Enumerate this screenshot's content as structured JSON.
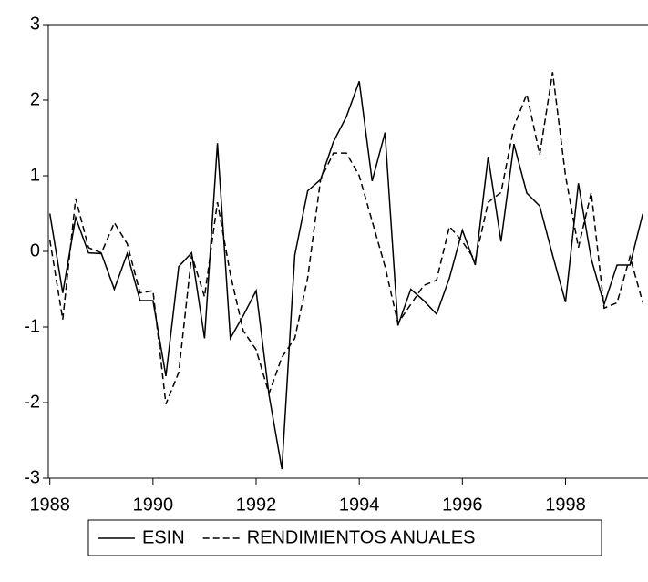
{
  "chart_data": {
    "type": "line",
    "x": [
      1988,
      1988.25,
      1988.5,
      1988.75,
      1989,
      1989.25,
      1989.5,
      1989.75,
      1990,
      1990.25,
      1990.5,
      1990.75,
      1991,
      1991.25,
      1991.5,
      1991.75,
      1992,
      1992.25,
      1992.5,
      1992.75,
      1993,
      1993.25,
      1993.5,
      1993.75,
      1994,
      1994.25,
      1994.5,
      1994.75,
      1995,
      1995.25,
      1995.5,
      1995.75,
      1996,
      1996.25,
      1996.5,
      1996.75,
      1997,
      1997.25,
      1997.5,
      1997.75,
      1998,
      1998.25,
      1998.5,
      1998.75,
      1999,
      1999.25,
      1999.5
    ],
    "series": [
      {
        "name": "ESIN",
        "color": "#000000",
        "dash": "solid",
        "values": [
          0.5,
          -0.55,
          0.45,
          -0.02,
          -0.03,
          -0.5,
          -0.03,
          -0.65,
          -0.65,
          -1.65,
          -0.2,
          -0.02,
          -1.15,
          1.43,
          -1.15,
          -0.85,
          -0.52,
          -1.9,
          -2.88,
          -0.05,
          0.8,
          0.95,
          1.45,
          1.78,
          2.25,
          0.93,
          1.57,
          -0.98,
          -0.5,
          -0.65,
          -0.83,
          -0.35,
          0.28,
          -0.18,
          1.25,
          0.13,
          1.42,
          0.77,
          0.6,
          -0.05,
          -0.67,
          0.9,
          -0.1,
          -0.7,
          -0.18,
          -0.18,
          0.5
        ]
      },
      {
        "name": "RENDIMIENTOS ANUALES",
        "color": "#000000",
        "dash": "dashed",
        "values": [
          0.15,
          -0.9,
          0.7,
          0.05,
          -0.02,
          0.38,
          0.1,
          -0.55,
          -0.52,
          -2.02,
          -1.6,
          -0.05,
          -0.6,
          0.65,
          -0.3,
          -1.05,
          -1.3,
          -1.88,
          -1.4,
          -1.15,
          -0.35,
          0.95,
          1.3,
          1.3,
          1.0,
          0.4,
          -0.2,
          -0.95,
          -0.7,
          -0.45,
          -0.38,
          0.33,
          0.13,
          -0.12,
          0.65,
          0.78,
          1.65,
          2.08,
          1.28,
          2.37,
          1.0,
          0.05,
          0.78,
          -0.75,
          -0.68,
          -0.07,
          -0.68
        ]
      }
    ],
    "xlim": [
      1987.97,
      1999.6
    ],
    "xticks": [
      1988,
      1990,
      1992,
      1994,
      1996,
      1998
    ],
    "ylim": [
      -3,
      3
    ],
    "yticks": [
      -3,
      -2,
      -1,
      0,
      1,
      2,
      3
    ],
    "grid": false,
    "legend": "bottom"
  }
}
